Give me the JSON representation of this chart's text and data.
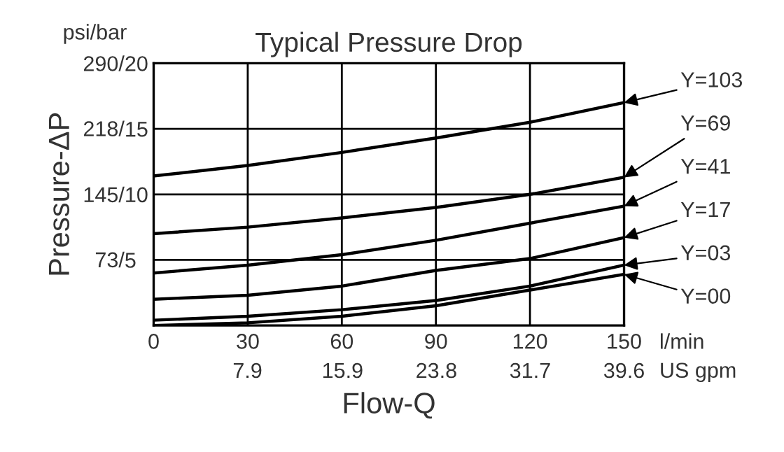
{
  "chart_data": {
    "type": "line",
    "title": "Typical Pressure Drop",
    "xlabel": "Flow-Q",
    "y2label": "Pressure-ΔP",
    "x": [
      0,
      30,
      60,
      90,
      120,
      150
    ],
    "series": [
      {
        "name": "Y=103",
        "color": "#000000",
        "values": [
          11.4,
          12.2,
          13.2,
          14.3,
          15.5,
          17.0
        ]
      },
      {
        "name": "Y=69",
        "color": "#000000",
        "values": [
          7.0,
          7.5,
          8.2,
          9.0,
          10.0,
          11.3
        ]
      },
      {
        "name": "Y=41",
        "color": "#000000",
        "values": [
          4.0,
          4.6,
          5.4,
          6.5,
          7.8,
          9.1
        ]
      },
      {
        "name": "Y=17",
        "color": "#000000",
        "values": [
          2.0,
          2.3,
          3.0,
          4.2,
          5.1,
          6.7
        ]
      },
      {
        "name": "Y=03",
        "color": "#000000",
        "values": [
          0.4,
          0.7,
          1.2,
          1.9,
          3.0,
          4.6
        ]
      },
      {
        "name": "Y=00",
        "color": "#000000",
        "values": [
          0,
          0.2,
          0.7,
          1.5,
          2.7,
          3.9
        ]
      }
    ],
    "xlim": [
      0,
      150
    ],
    "ylim": [
      0,
      20
    ],
    "xticks": [
      0,
      30,
      60,
      90,
      120,
      150
    ],
    "x2lim": [
      0,
      39.6
    ],
    "x2ticks": [
      7.9,
      15.9,
      23.8,
      31.7,
      39.6
    ],
    "yticks": [
      5,
      10,
      15,
      20
    ],
    "y2lim": [
      0,
      290
    ],
    "y2ticks": [
      {
        "value": 73,
        "label": "73/"
      },
      {
        "value": 145,
        "label": "145/"
      },
      {
        "value": 218,
        "label": "218/"
      },
      {
        "value": 290,
        "label": "290/"
      }
    ],
    "annotations": [
      "psi/bar",
      "l/min",
      "US gpm"
    ],
    "grid": true,
    "legend": "right",
    "marker": "none",
    "line_style": "solid"
  }
}
